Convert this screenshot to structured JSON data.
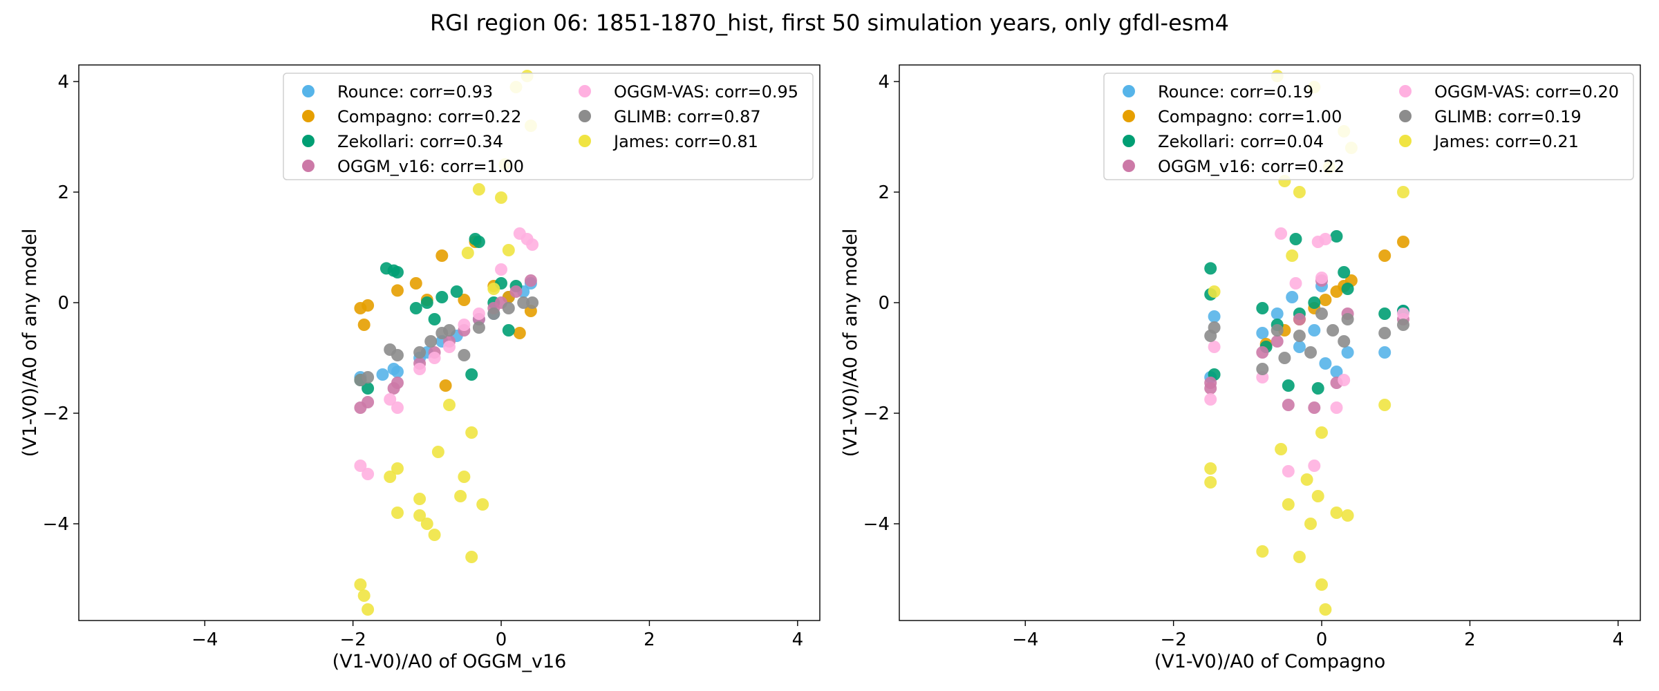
{
  "figure": {
    "title": "RGI region 06: 1851-1870_hist, first 50 simulation years, only gfdl-esm4"
  },
  "colors": {
    "Rounce": "#56b4e9",
    "Compagno": "#e69f00",
    "Zekollari": "#009e73",
    "OGGM_v16": "#cc79a7",
    "OGGM-VAS": "#ffb0e0",
    "GLIMB": "#8c8c8c",
    "James": "#f0e442"
  },
  "chart_data": [
    {
      "type": "scatter",
      "xlabel": "(V1-V0)/A0 of OGGM_v16",
      "ylabel": "(V1-V0)/A0 of any model",
      "xlim": [
        -5.7,
        4.3
      ],
      "ylim": [
        -5.75,
        4.3
      ],
      "xticks": [
        -4,
        -2,
        0,
        2,
        4
      ],
      "yticks": [
        -4,
        -2,
        0,
        2,
        4
      ],
      "xtick_labels": [
        "−4",
        "−2",
        "0",
        "2",
        "4"
      ],
      "ytick_labels": [
        "−4",
        "−2",
        "0",
        "2",
        "4"
      ],
      "legend_position": "top-right",
      "legend_columns": 2,
      "series": [
        {
          "name": "Rounce",
          "label": "Rounce: corr=0.93",
          "x": [
            -1.9,
            -1.6,
            -1.45,
            -1.4,
            -1.1,
            -1.0,
            -0.8,
            -0.6,
            -0.3,
            -0.1,
            0.1,
            0.3,
            0.4
          ],
          "y": [
            -1.35,
            -1.3,
            -1.2,
            -1.25,
            -1.0,
            -0.9,
            -0.7,
            -0.6,
            -0.3,
            -0.2,
            0.1,
            0.2,
            0.35
          ]
        },
        {
          "name": "Compagno",
          "label": "Compagno: corr=0.22",
          "x": [
            -1.9,
            -1.8,
            -1.85,
            -1.4,
            -1.15,
            -1.0,
            -0.8,
            -0.75,
            -0.5,
            -0.35,
            -0.1,
            0.1,
            0.25,
            0.4
          ],
          "y": [
            -0.1,
            -0.05,
            -0.4,
            0.22,
            0.35,
            0.05,
            0.85,
            -1.5,
            0.05,
            1.1,
            0.3,
            0.1,
            -0.55,
            -0.15
          ]
        },
        {
          "name": "Zekollari",
          "label": "Zekollari: corr=0.34",
          "x": [
            -1.9,
            -1.8,
            -1.55,
            -1.45,
            -1.4,
            -1.15,
            -1.0,
            -0.9,
            -0.8,
            -0.6,
            -0.4,
            -0.35,
            -0.3,
            -0.1,
            0.0,
            0.1,
            0.2
          ],
          "y": [
            -1.4,
            -1.55,
            0.62,
            0.58,
            0.55,
            -0.1,
            0.0,
            -0.3,
            0.1,
            0.2,
            -1.3,
            1.15,
            1.1,
            0.0,
            0.35,
            -0.5,
            0.3
          ]
        },
        {
          "name": "OGGM_v16",
          "label": "OGGM_v16: corr=1.00",
          "x": [
            -1.9,
            -1.8,
            -1.45,
            -1.4,
            -1.1,
            -0.9,
            -0.7,
            -0.5,
            -0.3,
            -0.1,
            0.0,
            0.2,
            0.4
          ],
          "y": [
            -1.9,
            -1.8,
            -1.55,
            -1.45,
            -1.1,
            -0.9,
            -0.7,
            -0.5,
            -0.3,
            -0.1,
            0.0,
            0.2,
            0.4
          ]
        },
        {
          "name": "OGGM-VAS",
          "label": "OGGM-VAS: corr=0.95",
          "x": [
            -1.9,
            -1.8,
            -1.5,
            -1.4,
            -1.1,
            -0.9,
            -0.7,
            -0.5,
            -0.3,
            0.0,
            0.25,
            0.35,
            0.42
          ],
          "y": [
            -2.95,
            -3.1,
            -1.75,
            -1.9,
            -1.2,
            -1.0,
            -0.8,
            -0.4,
            -0.2,
            0.6,
            1.25,
            1.15,
            1.05
          ]
        },
        {
          "name": "GLIMB",
          "label": "GLIMB: corr=0.87",
          "x": [
            -1.9,
            -1.8,
            -1.5,
            -1.4,
            -1.1,
            -0.95,
            -0.8,
            -0.7,
            -0.5,
            -0.3,
            -0.1,
            0.1,
            0.3,
            0.42
          ],
          "y": [
            -1.4,
            -1.35,
            -0.85,
            -0.95,
            -0.9,
            -0.7,
            -0.55,
            -0.5,
            -0.95,
            -0.45,
            -0.2,
            -0.1,
            0.0,
            0.0
          ]
        },
        {
          "name": "James",
          "label": "James: corr=0.81",
          "x": [
            -1.9,
            -1.85,
            -1.8,
            -1.5,
            -1.4,
            -1.4,
            -1.1,
            -1.1,
            -1.0,
            -0.9,
            -0.85,
            -0.7,
            -0.55,
            -0.5,
            -0.45,
            -0.4,
            -0.4,
            -0.3,
            -0.25,
            -0.1,
            0.0,
            0.05,
            0.1,
            0.2,
            0.35,
            0.4
          ],
          "y": [
            -5.1,
            -5.3,
            -5.55,
            -3.15,
            -3.0,
            -3.8,
            -3.55,
            -3.85,
            -4.0,
            -4.2,
            -2.7,
            -1.85,
            -3.5,
            -3.15,
            0.9,
            -4.6,
            -2.35,
            2.05,
            -3.65,
            0.25,
            1.9,
            2.5,
            0.95,
            3.9,
            4.1,
            3.2
          ]
        }
      ]
    },
    {
      "type": "scatter",
      "xlabel": "(V1-V0)/A0 of Compagno",
      "ylabel": "(V1-V0)/A0 of any model",
      "xlim": [
        -5.7,
        4.3
      ],
      "ylim": [
        -5.75,
        4.3
      ],
      "xticks": [
        -4,
        -2,
        0,
        2,
        4
      ],
      "yticks": [
        -4,
        -2,
        0,
        2,
        4
      ],
      "xtick_labels": [
        "−4",
        "−2",
        "0",
        "2",
        "4"
      ],
      "ytick_labels": [
        "−4",
        "−2",
        "0",
        "2",
        "4"
      ],
      "legend_position": "top-right",
      "legend_columns": 2,
      "series": [
        {
          "name": "Rounce",
          "label": "Rounce: corr=0.19",
          "x": [
            -1.5,
            -1.45,
            -0.8,
            -0.6,
            -0.4,
            -0.3,
            -0.1,
            0.0,
            0.05,
            0.2,
            0.35,
            0.85,
            1.1
          ],
          "y": [
            -1.35,
            -0.25,
            -0.55,
            -0.2,
            0.1,
            -0.8,
            -0.5,
            0.3,
            -1.1,
            -1.25,
            -0.9,
            -0.9,
            -0.15
          ]
        },
        {
          "name": "Compagno",
          "label": "Compagno: corr=1.00",
          "x": [
            -0.75,
            -0.5,
            -0.3,
            -0.1,
            0.05,
            0.2,
            0.3,
            0.4,
            0.85,
            1.1
          ],
          "y": [
            -0.75,
            -0.5,
            -0.3,
            -0.1,
            0.05,
            0.2,
            0.3,
            0.4,
            0.85,
            1.1
          ]
        },
        {
          "name": "Zekollari",
          "label": "Zekollari: corr=0.04",
          "x": [
            -1.5,
            -1.5,
            -1.45,
            -0.8,
            -0.75,
            -0.6,
            -0.45,
            -0.35,
            -0.3,
            -0.1,
            -0.05,
            0.2,
            0.3,
            0.35,
            0.85,
            1.1
          ],
          "y": [
            0.62,
            0.15,
            -1.3,
            -0.1,
            -0.8,
            -0.4,
            -1.5,
            1.15,
            -0.2,
            0.0,
            -1.55,
            1.2,
            0.55,
            0.25,
            -0.2,
            -0.15
          ]
        },
        {
          "name": "OGGM_v16",
          "label": "OGGM_v16: corr=0.22",
          "x": [
            -1.5,
            -1.5,
            -0.8,
            -0.6,
            -0.45,
            -0.3,
            -0.1,
            0.0,
            0.2,
            0.35,
            1.1
          ],
          "y": [
            -1.55,
            -1.45,
            -0.9,
            -0.7,
            -1.85,
            -0.3,
            -1.9,
            0.4,
            -1.45,
            -0.2,
            -0.3
          ]
        },
        {
          "name": "OGGM-VAS",
          "label": "OGGM-VAS: corr=0.20",
          "x": [
            -1.5,
            -1.45,
            -0.8,
            -0.55,
            -0.45,
            -0.35,
            -0.1,
            -0.05,
            0.0,
            0.05,
            0.2,
            0.3,
            1.1
          ],
          "y": [
            -1.75,
            -0.8,
            -1.35,
            1.25,
            -3.05,
            0.35,
            -2.95,
            1.1,
            0.45,
            1.15,
            -1.9,
            -1.4,
            -0.2
          ]
        },
        {
          "name": "GLIMB",
          "label": "GLIMB: corr=0.19",
          "x": [
            -1.5,
            -1.45,
            -0.8,
            -0.6,
            -0.5,
            -0.3,
            -0.15,
            0.0,
            0.15,
            0.3,
            0.35,
            0.85,
            1.1
          ],
          "y": [
            -0.6,
            -0.45,
            -1.2,
            -0.5,
            -1.0,
            -0.6,
            -0.9,
            -0.2,
            -0.5,
            -0.7,
            -0.3,
            -0.55,
            -0.4
          ]
        },
        {
          "name": "James",
          "label": "James: corr=0.21",
          "x": [
            -1.5,
            -1.5,
            -1.45,
            -0.8,
            -0.6,
            -0.55,
            -0.5,
            -0.45,
            -0.4,
            -0.3,
            -0.3,
            -0.2,
            -0.15,
            -0.1,
            -0.05,
            0.0,
            0.0,
            0.05,
            0.1,
            0.2,
            0.3,
            0.35,
            0.4,
            0.85,
            1.1
          ],
          "y": [
            -3.0,
            -3.25,
            0.2,
            -4.5,
            4.1,
            -2.65,
            2.2,
            -3.65,
            0.85,
            2.0,
            -4.6,
            -3.2,
            -4.0,
            3.9,
            -3.5,
            -5.1,
            -2.35,
            -5.55,
            2.45,
            -3.8,
            3.1,
            -3.85,
            2.8,
            -1.85,
            2.0
          ]
        }
      ]
    }
  ]
}
